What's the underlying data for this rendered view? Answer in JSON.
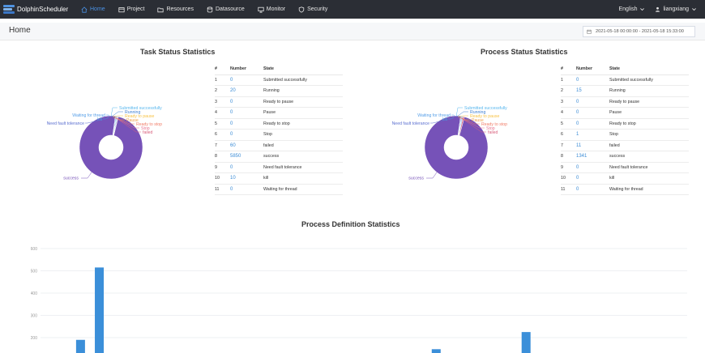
{
  "header": {
    "brand": "DolphinScheduler",
    "nav": [
      {
        "label": "Home",
        "icon": "home-icon",
        "active": true
      },
      {
        "label": "Project",
        "icon": "project-icon",
        "active": false
      },
      {
        "label": "Resources",
        "icon": "folder-icon",
        "active": false
      },
      {
        "label": "Datasource",
        "icon": "datasource-icon",
        "active": false
      },
      {
        "label": "Monitor",
        "icon": "monitor-icon",
        "active": false
      },
      {
        "label": "Security",
        "icon": "shield-icon",
        "active": false
      }
    ],
    "language": "English",
    "user": "liangxiang"
  },
  "page": {
    "title": "Home",
    "date_range": "2021-05-18 00:00:00 - 2021-05-18 15:33:00"
  },
  "table_headers": {
    "index": "#",
    "number": "Number",
    "state": "State"
  },
  "task_status": {
    "title": "Task Status Statistics",
    "rows": [
      {
        "index": "1",
        "number": "0",
        "state": "Submitted successfully"
      },
      {
        "index": "2",
        "number": "20",
        "state": "Running"
      },
      {
        "index": "3",
        "number": "0",
        "state": "Ready to pause"
      },
      {
        "index": "4",
        "number": "0",
        "state": "Pause"
      },
      {
        "index": "5",
        "number": "0",
        "state": "Ready to stop"
      },
      {
        "index": "6",
        "number": "0",
        "state": "Stop"
      },
      {
        "index": "7",
        "number": "60",
        "state": "failed"
      },
      {
        "index": "8",
        "number": "5850",
        "state": "success"
      },
      {
        "index": "9",
        "number": "0",
        "state": "Need fault tolerance"
      },
      {
        "index": "10",
        "number": "10",
        "state": "kill"
      },
      {
        "index": "11",
        "number": "0",
        "state": "Waiting for thread"
      }
    ]
  },
  "process_status": {
    "title": "Process Status Statistics",
    "rows": [
      {
        "index": "1",
        "number": "0",
        "state": "Submitted successfully"
      },
      {
        "index": "2",
        "number": "15",
        "state": "Running"
      },
      {
        "index": "3",
        "number": "0",
        "state": "Ready to pause"
      },
      {
        "index": "4",
        "number": "0",
        "state": "Pause"
      },
      {
        "index": "5",
        "number": "0",
        "state": "Ready to stop"
      },
      {
        "index": "6",
        "number": "1",
        "state": "Stop"
      },
      {
        "index": "7",
        "number": "11",
        "state": "failed"
      },
      {
        "index": "8",
        "number": "1341",
        "state": "success"
      },
      {
        "index": "9",
        "number": "0",
        "state": "Need fault tolerance"
      },
      {
        "index": "10",
        "number": "0",
        "state": "kill"
      },
      {
        "index": "11",
        "number": "0",
        "state": "Waiting for thread"
      }
    ]
  },
  "pie_colors": {
    "Submitted successfully": "#58b7ee",
    "Running": "#3f7fd1",
    "Ready to pause": "#f7c244",
    "Pause": "#f0a04b",
    "Ready to stop": "#f17c67",
    "Stop": "#e8748f",
    "failed": "#d9617e",
    "success": "#7652b8",
    "Need fault tolerance": "#5b6fd0",
    "kill": "#4aa3df",
    "Waiting for thread": "#58a0e8"
  },
  "process_definition": {
    "title": "Process Definition Statistics"
  },
  "chart_data": {
    "type": "bar",
    "title": "Process Definition Statistics",
    "y_ticks": [
      "600",
      "500",
      "400",
      "300",
      "200"
    ],
    "ylim": [
      0,
      600
    ],
    "series_color": "#3b8fd9",
    "grid": true,
    "bars": [
      {
        "position": 0.055,
        "value": 190
      },
      {
        "position": 0.084,
        "value": 515
      },
      {
        "position": 0.605,
        "value": 148
      },
      {
        "position": 0.744,
        "value": 225
      }
    ]
  }
}
